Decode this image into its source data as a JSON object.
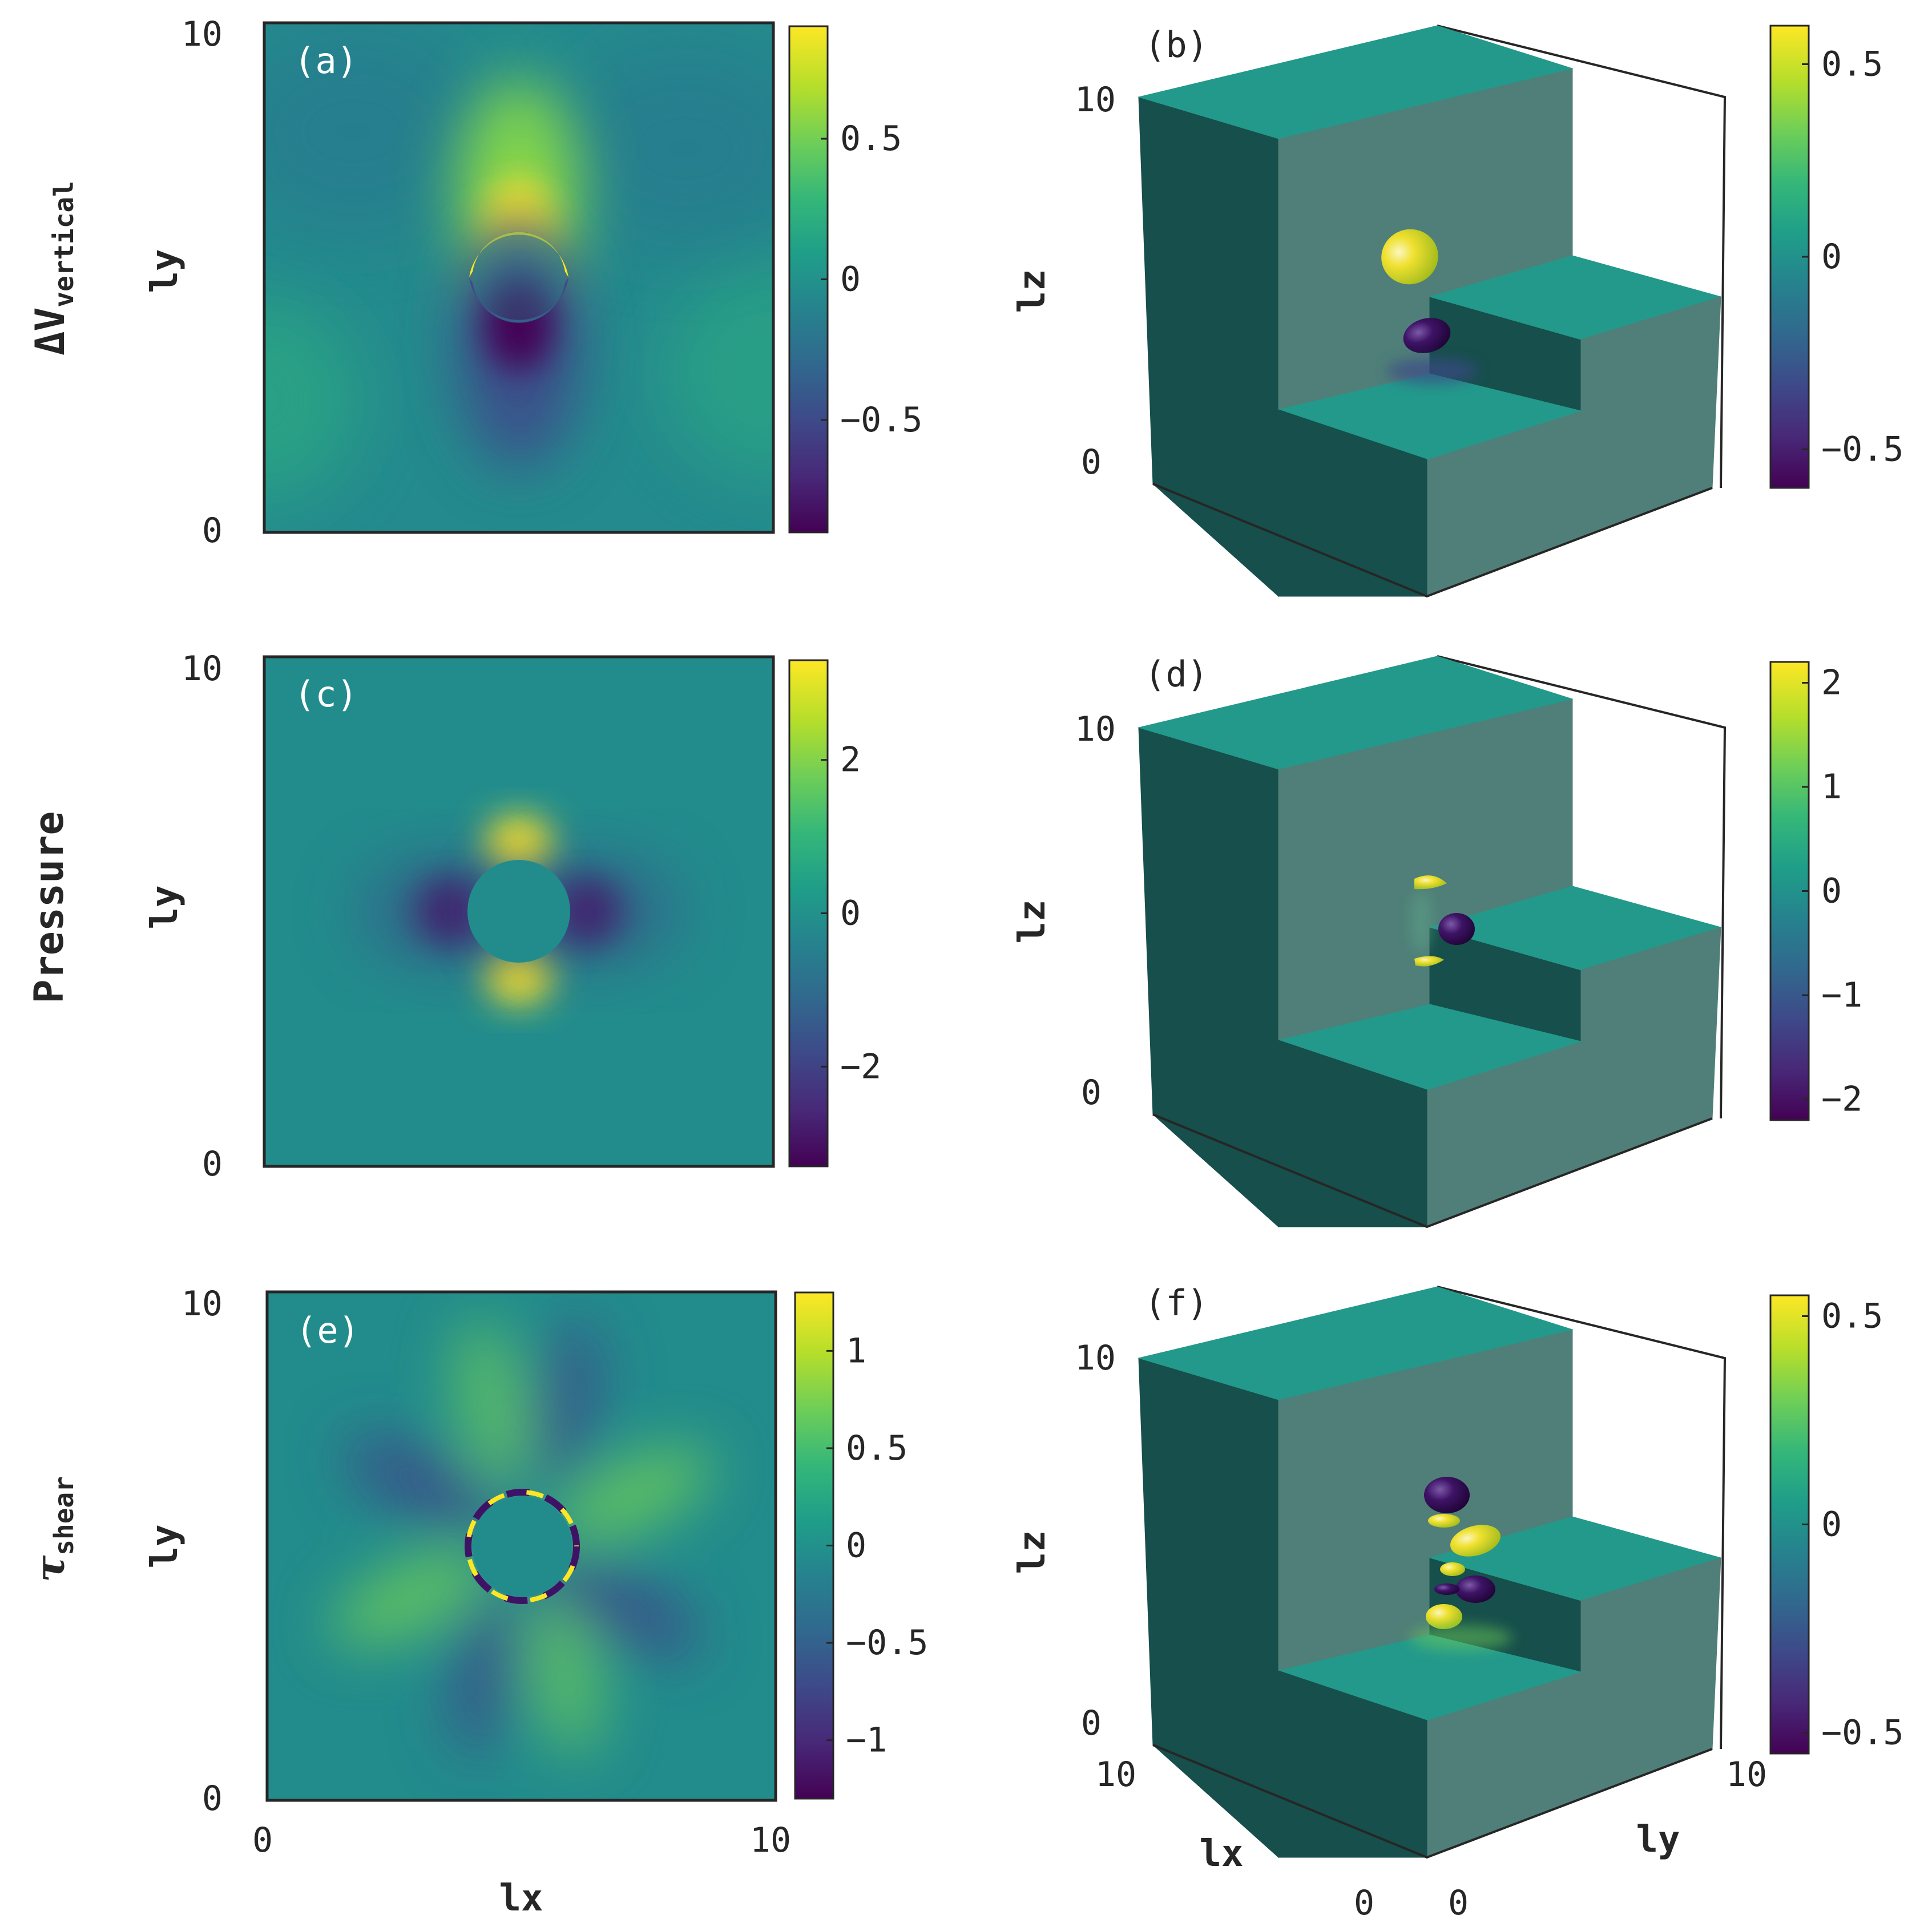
{
  "figure": {
    "row_labels": [
      {
        "main": "ΔV",
        "sub": "vertical"
      },
      {
        "main": "Pressure",
        "sub": ""
      },
      {
        "main": "τ",
        "sub": "shear"
      }
    ]
  },
  "chart_data": [
    {
      "type": "heatmap",
      "panel": "(a)",
      "xlabel": "",
      "ylabel": "ly",
      "xlim": [
        0,
        10
      ],
      "ylim": [
        0,
        10
      ],
      "y_ticks": [
        "0",
        "10"
      ],
      "colorbar": {
        "min": -0.9,
        "max": 0.9,
        "ticks": [
          {
            "v": 0.5,
            "label": "0.5"
          },
          {
            "v": 0,
            "label": "0"
          },
          {
            "v": -0.5,
            "label": "−0.5"
          }
        ]
      },
      "field": "vertical velocity perturbation: positive lobe above the cylinder, negative lobe below, weak quadrupole background",
      "cylinder": {
        "cx": 5,
        "cy": 5,
        "r": 1
      }
    },
    {
      "type": "3d-isosurface",
      "panel": "(b)",
      "zlabel": "lz",
      "z_ticks": [
        "0",
        "10"
      ],
      "colorbar": {
        "min": -0.6,
        "max": 0.6,
        "ticks": [
          {
            "v": 0.5,
            "label": "0.5"
          },
          {
            "v": 0,
            "label": "0"
          },
          {
            "v": -0.5,
            "label": "−0.5"
          }
        ]
      }
    },
    {
      "type": "heatmap",
      "panel": "(c)",
      "xlabel": "",
      "ylabel": "ly",
      "xlim": [
        0,
        10
      ],
      "ylim": [
        0,
        10
      ],
      "y_ticks": [
        "0",
        "10"
      ],
      "colorbar": {
        "min": -3.3,
        "max": 3.3,
        "ticks": [
          {
            "v": 2,
            "label": "2"
          },
          {
            "v": 0,
            "label": "0"
          },
          {
            "v": -2,
            "label": "−2"
          }
        ]
      },
      "field": "pressure: positive lobes above and below the cylinder, negative lobes left and right",
      "cylinder": {
        "cx": 5,
        "cy": 5,
        "r": 1
      }
    },
    {
      "type": "3d-isosurface",
      "panel": "(d)",
      "zlabel": "lz",
      "z_ticks": [
        "0",
        "10"
      ],
      "colorbar": {
        "min": -2.2,
        "max": 2.2,
        "ticks": [
          {
            "v": 2,
            "label": "2"
          },
          {
            "v": 1,
            "label": "1"
          },
          {
            "v": 0,
            "label": "0"
          },
          {
            "v": -1,
            "label": "−1"
          },
          {
            "v": -2,
            "label": "−2"
          }
        ]
      }
    },
    {
      "type": "heatmap",
      "panel": "(e)",
      "xlabel": "lx",
      "ylabel": "ly",
      "xlim": [
        0,
        10
      ],
      "ylim": [
        0,
        10
      ],
      "x_ticks": [
        "0",
        "10"
      ],
      "y_ticks": [
        "0",
        "10"
      ],
      "colorbar": {
        "min": -1.3,
        "max": 1.3,
        "ticks": [
          {
            "v": 1,
            "label": "1"
          },
          {
            "v": 0.5,
            "label": "0.5"
          },
          {
            "v": 0,
            "label": "0"
          },
          {
            "v": -0.5,
            "label": "−0.5"
          },
          {
            "v": -1,
            "label": "−1"
          }
        ]
      },
      "field": "shear stress: eight alternating radial lobes around the cylinder",
      "cylinder": {
        "cx": 5,
        "cy": 5,
        "r": 1
      }
    },
    {
      "type": "3d-isosurface",
      "panel": "(f)",
      "xlabel": "lx",
      "ylabel": "ly",
      "zlabel": "lz",
      "x_ticks": [
        "0",
        "10"
      ],
      "y_ticks": [
        "0",
        "10"
      ],
      "z_ticks": [
        "0",
        "10"
      ],
      "colorbar": {
        "min": -0.55,
        "max": 0.55,
        "ticks": [
          {
            "v": 0.5,
            "label": "0.5"
          },
          {
            "v": 0,
            "label": "0"
          },
          {
            "v": -0.5,
            "label": "−0.5"
          }
        ]
      }
    }
  ],
  "colors": {
    "viridis": [
      "#440154",
      "#482878",
      "#3e4989",
      "#31688e",
      "#26828e",
      "#1f9e89",
      "#35b779",
      "#6ece58",
      "#b5de2b",
      "#fde725"
    ],
    "box_top": "#23998b",
    "box_front": "#164f4b",
    "box_side": "#4f7f78",
    "axis": "#262626"
  }
}
